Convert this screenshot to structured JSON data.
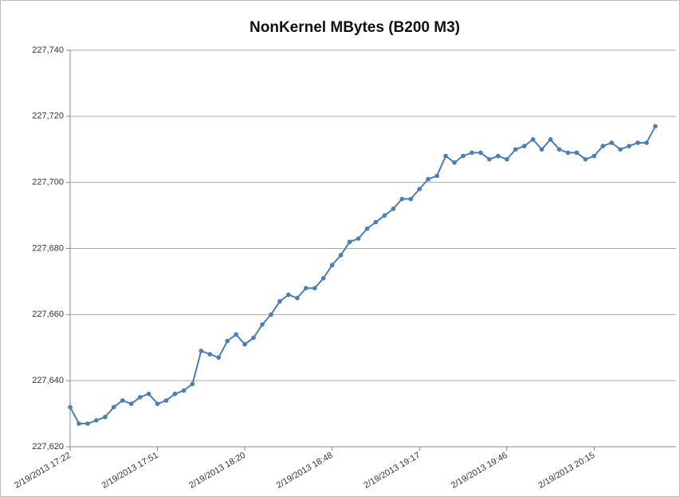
{
  "chart_data": {
    "type": "line",
    "title": "NonKernel MBytes (B200 M3)",
    "categories": [
      "2/19/2013 17:22",
      null,
      null,
      null,
      null,
      null,
      null,
      null,
      null,
      null,
      "2/19/2013 17:51",
      null,
      null,
      null,
      null,
      null,
      null,
      null,
      null,
      null,
      "2/19/2013 18:20",
      null,
      null,
      null,
      null,
      null,
      null,
      null,
      null,
      null,
      "2/19/2013 18:48",
      null,
      null,
      null,
      null,
      null,
      null,
      null,
      null,
      null,
      "2/19/2013 19:17",
      null,
      null,
      null,
      null,
      null,
      null,
      null,
      null,
      null,
      "2/19/2013 19:46",
      null,
      null,
      null,
      null,
      null,
      null,
      null,
      null,
      null,
      "2/19/2013 20:15",
      null,
      null,
      null,
      null,
      null,
      null,
      null
    ],
    "values": [
      227632,
      227627,
      227627,
      227628,
      227629,
      227632,
      227634,
      227633,
      227635,
      227636,
      227633,
      227634,
      227636,
      227637,
      227639,
      227649,
      227648,
      227647,
      227652,
      227654,
      227651,
      227653,
      227657,
      227660,
      227664,
      227666,
      227665,
      227668,
      227668,
      227671,
      227675,
      227678,
      227682,
      227683,
      227686,
      227688,
      227690,
      227692,
      227695,
      227695,
      227698,
      227701,
      227702,
      227708,
      227706,
      227708,
      227709,
      227709,
      227707,
      227708,
      227707,
      227710,
      227711,
      227713,
      227710,
      227713,
      227710,
      227709,
      227709,
      227707,
      227708,
      227711,
      227712,
      227710,
      227711,
      227712,
      227712,
      227717
    ],
    "color": "#4a7ebb",
    "ylim": [
      227620,
      227740
    ],
    "yticks": [
      {
        "value": 227620,
        "label": "227,620"
      },
      {
        "value": 227640,
        "label": "227,640"
      },
      {
        "value": 227660,
        "label": "227,660"
      },
      {
        "value": 227680,
        "label": "227,680"
      },
      {
        "value": 227700,
        "label": "227,700"
      },
      {
        "value": 227720,
        "label": "227,720"
      },
      {
        "value": 227740,
        "label": "227,740"
      }
    ],
    "grid": true
  }
}
